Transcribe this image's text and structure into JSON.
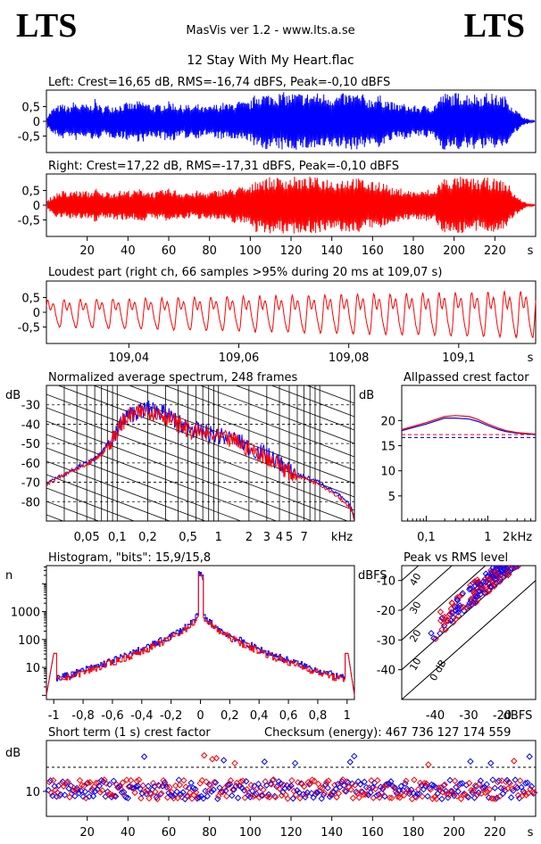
{
  "header": {
    "logo_left": "LTS",
    "logo_right": "LTS",
    "app": "MasVis ver 1.2 - www.lts.a.se",
    "file": "12 Stay With My Heart.flac"
  },
  "colors": {
    "left": "#0000ff",
    "right": "#ff0000",
    "axis": "#000000"
  },
  "chart_data": [
    {
      "type": "line",
      "title": "Left: Crest=16,65 dB, RMS=-16,74 dBFS, Peak=-0,10 dBFS",
      "color": "#0000ff",
      "ylim": [
        -1,
        1
      ],
      "yticks": [
        "0,5",
        "0",
        "-0,5"
      ],
      "xlim": [
        0,
        240
      ],
      "envelope": [
        0.2,
        0.45,
        0.55,
        0.6,
        0.5,
        0.7,
        0.58,
        0.6,
        0.55,
        0.78,
        0.5,
        0.58,
        0.55,
        0.6,
        0.6,
        0.65,
        0.62,
        0.7,
        0.7,
        0.62,
        0.55,
        0.6,
        0.65,
        0.7,
        0.62,
        0.55,
        0.6,
        0.5,
        0.6,
        0.5,
        0.5,
        0.58,
        0.6,
        0.65,
        0.6,
        0.7,
        0.7,
        0.65,
        0.7,
        0.98,
        0.98,
        0.95,
        0.98,
        0.98,
        1.0,
        0.95,
        0.98,
        0.98,
        0.95,
        0.98,
        0.98,
        0.96,
        0.98,
        0.92,
        0.9,
        0.95,
        0.96,
        0.98,
        0.95,
        0.92,
        0.8,
        0.85,
        0.9,
        0.8,
        0.7,
        0.6,
        0.62,
        0.6,
        0.52,
        0.55,
        0.52,
        0.6,
        0.5,
        0.8,
        0.98,
        0.95,
        0.98,
        0.98,
        0.98,
        0.95,
        0.95,
        0.92,
        0.98,
        0.95,
        0.9,
        0.9,
        0.8,
        0.5,
        0.3,
        0.15,
        0.05,
        0.02
      ]
    },
    {
      "type": "line",
      "title": "Right: Crest=17,22 dB, RMS=-17,31 dBFS, Peak=-0,10 dBFS",
      "color": "#ff0000",
      "ylim": [
        -1,
        1
      ],
      "yticks": [
        "0,5",
        "0",
        "-0,5"
      ],
      "xlim": [
        0,
        240
      ],
      "xticks": [
        "20",
        "40",
        "60",
        "80",
        "100",
        "120",
        "140",
        "160",
        "180",
        "200",
        "220"
      ],
      "xunit": "s",
      "envelope": [
        0.15,
        0.35,
        0.45,
        0.5,
        0.4,
        0.55,
        0.48,
        0.5,
        0.45,
        0.6,
        0.4,
        0.48,
        0.45,
        0.5,
        0.5,
        0.52,
        0.5,
        0.55,
        0.55,
        0.5,
        0.45,
        0.5,
        0.55,
        0.58,
        0.52,
        0.45,
        0.5,
        0.4,
        0.5,
        0.45,
        0.45,
        0.5,
        0.52,
        0.58,
        0.55,
        0.62,
        0.65,
        0.62,
        0.65,
        0.95,
        0.95,
        0.92,
        0.98,
        0.95,
        1.0,
        0.92,
        0.98,
        0.95,
        0.92,
        0.98,
        0.95,
        0.92,
        0.95,
        0.9,
        0.88,
        0.92,
        0.95,
        0.98,
        0.92,
        0.9,
        0.78,
        0.8,
        0.85,
        0.78,
        0.62,
        0.55,
        0.58,
        0.55,
        0.48,
        0.5,
        0.48,
        0.55,
        0.45,
        0.75,
        0.95,
        0.92,
        0.95,
        0.98,
        0.95,
        0.92,
        0.92,
        0.9,
        0.95,
        0.92,
        0.88,
        0.85,
        0.75,
        0.45,
        0.25,
        0.12,
        0.04,
        0.02
      ]
    },
    {
      "type": "line",
      "title": "Loudest part (right ch, 66 samples >95% during 20 ms at 109,07 s)",
      "color": "#ff0000",
      "ylim": [
        -1,
        1
      ],
      "yticks": [
        "0,5",
        "0",
        "-0,5"
      ],
      "xlim": [
        109.025,
        109.114
      ],
      "xticks": [
        "109,04",
        "109,06",
        "109,08",
        "109,1"
      ],
      "xunit": "s",
      "periods": 30,
      "amplitude_start": 0.55,
      "amplitude_end": 0.95
    },
    {
      "type": "line",
      "title": "Normalized average spectrum, 248 frames",
      "ylabel": "dB",
      "yticks": [
        "-30",
        "-40",
        "-50",
        "-60",
        "-70",
        "-80"
      ],
      "ylim": [
        -90,
        -20
      ],
      "xscale": "log",
      "xlim": [
        0.02,
        22
      ],
      "xticks": [
        "0,05",
        "0,1",
        "0,2",
        "0,5",
        "1",
        "2",
        "3",
        "4",
        "5",
        "7"
      ],
      "xunit": "kHz",
      "series": [
        {
          "x": [
            0.02,
            0.03,
            0.04,
            0.05,
            0.06,
            0.07,
            0.08,
            0.1,
            0.12,
            0.15,
            0.2,
            0.25,
            0.3,
            0.4,
            0.5,
            0.7,
            1,
            1.5,
            2,
            3,
            4,
            5,
            7,
            10,
            15,
            20,
            22
          ],
          "y": [
            -70,
            -66,
            -62,
            -60,
            -58,
            -55,
            -50,
            -43,
            -36,
            -34,
            -32,
            -33,
            -35,
            -39,
            -42,
            -44,
            -46,
            -48,
            -52,
            -56,
            -60,
            -64,
            -67,
            -70,
            -76,
            -82,
            -88
          ]
        },
        {
          "x": [
            0.02,
            0.03,
            0.04,
            0.05,
            0.06,
            0.07,
            0.08,
            0.1,
            0.12,
            0.15,
            0.2,
            0.25,
            0.3,
            0.4,
            0.5,
            0.7,
            1,
            1.5,
            2,
            3,
            4,
            5,
            7,
            10,
            15,
            20,
            22
          ],
          "y": [
            -71,
            -66,
            -63,
            -61,
            -58,
            -56,
            -51,
            -44,
            -37,
            -35,
            -33,
            -34,
            -36,
            -40,
            -43,
            -45,
            -47,
            -49,
            -53,
            -57,
            -61,
            -65,
            -68,
            -71,
            -77,
            -83,
            -89
          ]
        }
      ]
    },
    {
      "type": "line",
      "title": "Allpassed crest factor",
      "ylabel": "dB",
      "yticks": [
        "20",
        "15",
        "10",
        "5"
      ],
      "ylim": [
        0,
        27
      ],
      "xscale": "log",
      "xlim": [
        0.04,
        6
      ],
      "xticks": [
        "0,1",
        "1",
        "2"
      ],
      "xunit": "kHz",
      "dashed_levels": [
        16.6,
        17.2
      ],
      "series": [
        {
          "x": [
            0.04,
            0.1,
            0.2,
            0.3,
            0.5,
            0.7,
            1,
            1.5,
            2,
            3,
            6
          ],
          "y": [
            18,
            19.3,
            20.5,
            20.5,
            20.3,
            19.8,
            19.0,
            18.2,
            17.8,
            17.5,
            17.2
          ]
        },
        {
          "x": [
            0.04,
            0.1,
            0.2,
            0.3,
            0.5,
            0.7,
            1,
            1.5,
            2,
            3,
            6
          ],
          "y": [
            18.2,
            19.6,
            20.8,
            21,
            20.8,
            20.2,
            19.3,
            18.5,
            18.0,
            17.6,
            17.3
          ]
        }
      ]
    },
    {
      "type": "line",
      "title": "Histogram, \"bits\": 15,9/15,8",
      "ylabel": "n",
      "yscale": "log",
      "yticks": [
        "1000",
        "100",
        "10"
      ],
      "xlim": [
        -1.05,
        1.05
      ],
      "xticks": [
        "-1",
        "-0,8",
        "-0,6",
        "-0,4",
        "-0,2",
        "0",
        "0,2",
        "0,4",
        "0,6",
        "0,8",
        "1"
      ]
    },
    {
      "type": "scatter",
      "title": "Peak vs RMS level",
      "xlabel": "dBFS",
      "ylabel": "dBFS",
      "xlim": [
        -50,
        -10
      ],
      "ylim": [
        -50,
        -5
      ],
      "xticks": [
        "-40",
        "-30",
        "-20"
      ],
      "yticks": [
        "-10",
        "-20",
        "-30",
        "-40"
      ],
      "diagonal_labels": [
        "40",
        "30",
        "20",
        "10",
        "0 dB"
      ]
    },
    {
      "type": "scatter",
      "title": "Short term (1 s) crest factor",
      "checksum": "Checksum (energy):   467 736 127 174 559",
      "ylabel": "dB",
      "yticks": [
        "10"
      ],
      "xlim": [
        0,
        240
      ],
      "xticks": [
        "20",
        "40",
        "60",
        "80",
        "100",
        "120",
        "140",
        "160",
        "180",
        "200",
        "220"
      ],
      "xunit": "s"
    }
  ]
}
